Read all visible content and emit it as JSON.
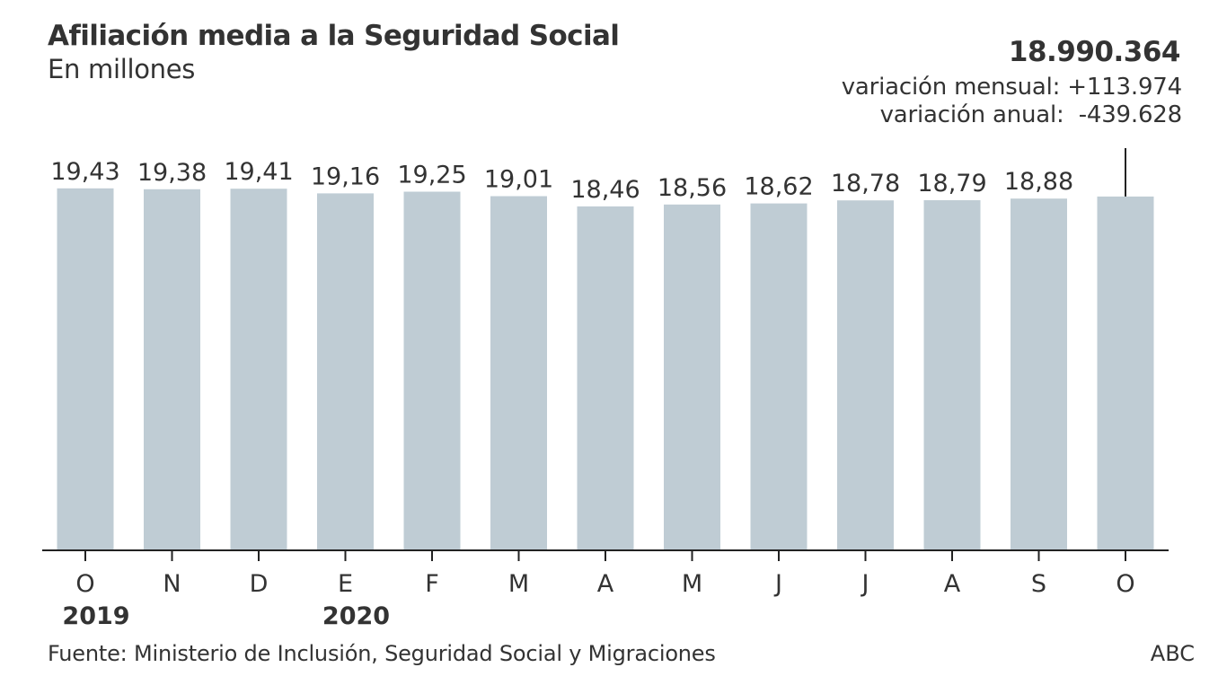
{
  "header": {
    "title": "Afiliación media a la Seguridad Social",
    "subtitle": "En millones"
  },
  "callout": {
    "value": "18.990.364",
    "monthly": "variación mensual: +113.974",
    "annual": "variación anual:  -439.628"
  },
  "footer": {
    "source": "Fuente: Ministerio de Inclusión, Seguridad Social y Migraciones",
    "brand": "ABC"
  },
  "colors": {
    "bar": "#bfccd4",
    "axis": "#222222",
    "text": "#333333"
  },
  "chart_data": {
    "type": "bar",
    "title": "Afiliación media a la Seguridad Social",
    "subtitle": "En millones",
    "categories": [
      "O",
      "N",
      "D",
      "E",
      "F",
      "M",
      "A",
      "M",
      "J",
      "J",
      "A",
      "S",
      "O"
    ],
    "values": [
      19.43,
      19.38,
      19.41,
      19.16,
      19.25,
      19.01,
      18.46,
      18.56,
      18.62,
      18.78,
      18.79,
      18.88,
      18.99
    ],
    "value_labels": [
      "19,43",
      "19,38",
      "19,41",
      "19,16",
      "19,25",
      "19,01",
      "18,46",
      "18,56",
      "18,62",
      "18,78",
      "18,79",
      "18,88",
      ""
    ],
    "year_labels": [
      {
        "index": 0,
        "label": "2019"
      },
      {
        "index": 3,
        "label": "2020"
      }
    ],
    "ylim": [
      0,
      19.9
    ],
    "grid": false,
    "legend": "none"
  }
}
